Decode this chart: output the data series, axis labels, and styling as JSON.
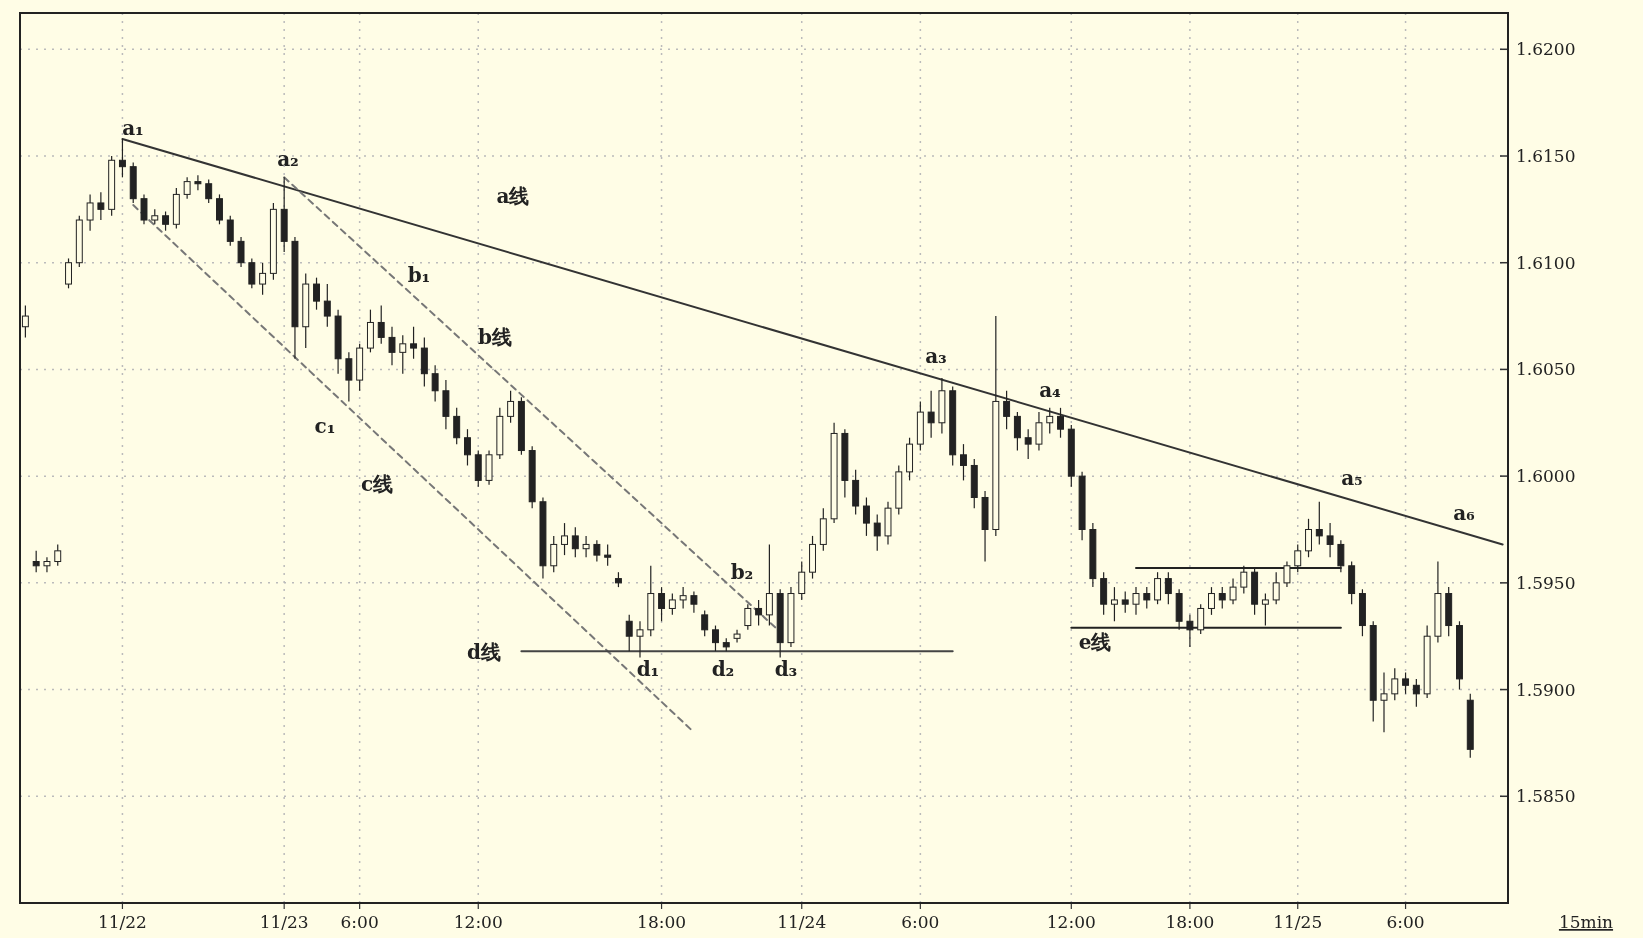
{
  "chart_data": {
    "type": "candlestick",
    "xlabel": "15min",
    "grid": true,
    "ylim": [
      1.58,
      1.6217
    ],
    "yticks": [
      {
        "value": 1.585,
        "label": "1.5850"
      },
      {
        "value": 1.59,
        "label": "1.5900"
      },
      {
        "value": 1.595,
        "label": "1.5950"
      },
      {
        "value": 1.6,
        "label": "1.6000"
      },
      {
        "value": 1.605,
        "label": "1.6050"
      },
      {
        "value": 1.61,
        "label": "1.6100"
      },
      {
        "value": 1.615,
        "label": "1.6150"
      },
      {
        "value": 1.62,
        "label": "1.6200"
      }
    ],
    "categories": [
      null,
      null,
      null,
      null,
      null,
      null,
      null,
      null,
      null,
      "11/22",
      null,
      null,
      null,
      null,
      null,
      null,
      null,
      null,
      null,
      null,
      null,
      null,
      null,
      null,
      "11/23",
      null,
      null,
      null,
      null,
      null,
      null,
      "6:00",
      null,
      null,
      null,
      null,
      null,
      null,
      null,
      null,
      null,
      null,
      "12:00",
      null,
      null,
      null,
      null,
      null,
      null,
      null,
      null,
      null,
      null,
      null,
      null,
      null,
      null,
      null,
      null,
      "18:00",
      null,
      null,
      null,
      null,
      null,
      null,
      null,
      null,
      null,
      null,
      null,
      null,
      "11/24",
      null,
      null,
      null,
      null,
      null,
      null,
      null,
      null,
      null,
      null,
      "6:00",
      null,
      null,
      null,
      null,
      null,
      null,
      null,
      null,
      null,
      null,
      null,
      null,
      null,
      "12:00",
      null,
      null,
      null,
      null,
      null,
      null,
      null,
      null,
      null,
      null,
      "18:00",
      null,
      null,
      null,
      null,
      null,
      null,
      null,
      null,
      null,
      "11/25",
      null,
      null,
      null,
      null,
      null,
      null,
      null,
      null,
      null,
      "6:00",
      null,
      null,
      null,
      null,
      null,
      null,
      null,
      null,
      null
    ],
    "ohlc": [
      [
        1.607,
        1.608,
        1.6065,
        1.6075
      ],
      [
        1.596,
        1.5965,
        1.5955,
        1.5958
      ],
      [
        1.5958,
        1.5962,
        1.5955,
        1.596
      ],
      [
        1.596,
        1.5968,
        1.5958,
        1.5965
      ],
      [
        1.609,
        1.6102,
        1.6088,
        1.61
      ],
      [
        1.61,
        1.6122,
        1.6098,
        1.612
      ],
      [
        1.612,
        1.6132,
        1.6115,
        1.6128
      ],
      [
        1.6128,
        1.6133,
        1.612,
        1.6125
      ],
      [
        1.6125,
        1.615,
        1.6122,
        1.6148
      ],
      [
        1.6148,
        1.6158,
        1.614,
        1.6145
      ],
      [
        1.6145,
        1.6147,
        1.6128,
        1.613
      ],
      [
        1.613,
        1.6132,
        1.6118,
        1.612
      ],
      [
        1.612,
        1.6125,
        1.6118,
        1.6122
      ],
      [
        1.6122,
        1.6124,
        1.6115,
        1.6118
      ],
      [
        1.6118,
        1.6135,
        1.6116,
        1.6132
      ],
      [
        1.6132,
        1.614,
        1.613,
        1.6138
      ],
      [
        1.6138,
        1.6141,
        1.6134,
        1.6137
      ],
      [
        1.6137,
        1.6139,
        1.6128,
        1.613
      ],
      [
        1.613,
        1.6132,
        1.6118,
        1.612
      ],
      [
        1.612,
        1.6122,
        1.6108,
        1.611
      ],
      [
        1.611,
        1.6112,
        1.6098,
        1.61
      ],
      [
        1.61,
        1.6102,
        1.6088,
        1.609
      ],
      [
        1.609,
        1.61,
        1.6085,
        1.6095
      ],
      [
        1.6095,
        1.6128,
        1.6092,
        1.6125
      ],
      [
        1.6125,
        1.614,
        1.6105,
        1.611
      ],
      [
        1.611,
        1.6112,
        1.6055,
        1.607
      ],
      [
        1.607,
        1.6095,
        1.606,
        1.609
      ],
      [
        1.609,
        1.6093,
        1.6078,
        1.6082
      ],
      [
        1.6082,
        1.609,
        1.607,
        1.6075
      ],
      [
        1.6075,
        1.6078,
        1.6048,
        1.6055
      ],
      [
        1.6055,
        1.6058,
        1.6035,
        1.6045
      ],
      [
        1.6045,
        1.6062,
        1.604,
        1.606
      ],
      [
        1.606,
        1.6078,
        1.6058,
        1.6072
      ],
      [
        1.6072,
        1.608,
        1.6062,
        1.6065
      ],
      [
        1.6065,
        1.607,
        1.6052,
        1.6058
      ],
      [
        1.6058,
        1.6066,
        1.6048,
        1.6062
      ],
      [
        1.6062,
        1.607,
        1.6055,
        1.606
      ],
      [
        1.606,
        1.6065,
        1.6042,
        1.6048
      ],
      [
        1.6048,
        1.6052,
        1.6035,
        1.604
      ],
      [
        1.604,
        1.6045,
        1.6022,
        1.6028
      ],
      [
        1.6028,
        1.6032,
        1.6015,
        1.6018
      ],
      [
        1.6018,
        1.6022,
        1.6005,
        1.601
      ],
      [
        1.601,
        1.6012,
        1.5995,
        1.5998
      ],
      [
        1.5998,
        1.6012,
        1.5996,
        1.601
      ],
      [
        1.601,
        1.6032,
        1.6008,
        1.6028
      ],
      [
        1.6028,
        1.604,
        1.6025,
        1.6035
      ],
      [
        1.6035,
        1.6037,
        1.601,
        1.6012
      ],
      [
        1.6012,
        1.6014,
        1.5985,
        1.5988
      ],
      [
        1.5988,
        1.599,
        1.5952,
        1.5958
      ],
      [
        1.5958,
        1.5972,
        1.5955,
        1.5968
      ],
      [
        1.5968,
        1.5978,
        1.5963,
        1.5972
      ],
      [
        1.5972,
        1.5976,
        1.5962,
        1.5966
      ],
      [
        1.5966,
        1.5972,
        1.5962,
        1.5968
      ],
      [
        1.5968,
        1.597,
        1.596,
        1.5963
      ],
      [
        1.5963,
        1.5968,
        1.5958,
        1.5962
      ],
      [
        1.5952,
        1.5955,
        1.5948,
        1.595
      ],
      [
        1.5932,
        1.5935,
        1.5918,
        1.5925
      ],
      [
        1.5925,
        1.5932,
        1.5915,
        1.5928
      ],
      [
        1.5928,
        1.5958,
        1.5925,
        1.5945
      ],
      [
        1.5945,
        1.5948,
        1.5932,
        1.5938
      ],
      [
        1.5938,
        1.5945,
        1.5935,
        1.5942
      ],
      [
        1.5942,
        1.5948,
        1.5938,
        1.5944
      ],
      [
        1.5944,
        1.5946,
        1.5936,
        1.594
      ],
      [
        1.5935,
        1.5937,
        1.5925,
        1.5928
      ],
      [
        1.5928,
        1.593,
        1.5918,
        1.5922
      ],
      [
        1.5922,
        1.5924,
        1.5918,
        1.592
      ],
      [
        1.5924,
        1.5928,
        1.5922,
        1.5926
      ],
      [
        1.593,
        1.594,
        1.5928,
        1.5938
      ],
      [
        1.5938,
        1.5942,
        1.593,
        1.5935
      ],
      [
        1.5935,
        1.5968,
        1.593,
        1.5945
      ],
      [
        1.5945,
        1.5947,
        1.5915,
        1.5922
      ],
      [
        1.5922,
        1.5948,
        1.592,
        1.5945
      ],
      [
        1.5945,
        1.596,
        1.5942,
        1.5955
      ],
      [
        1.5955,
        1.5972,
        1.5952,
        1.5968
      ],
      [
        1.5968,
        1.5985,
        1.5965,
        1.598
      ],
      [
        1.598,
        1.6025,
        1.5978,
        1.602
      ],
      [
        1.602,
        1.6022,
        1.599,
        1.5998
      ],
      [
        1.5998,
        1.6003,
        1.5982,
        1.5986
      ],
      [
        1.5986,
        1.599,
        1.5972,
        1.5978
      ],
      [
        1.5978,
        1.5982,
        1.5965,
        1.5972
      ],
      [
        1.5972,
        1.5988,
        1.5968,
        1.5985
      ],
      [
        1.5985,
        1.6005,
        1.5982,
        1.6002
      ],
      [
        1.6002,
        1.6018,
        1.5998,
        1.6015
      ],
      [
        1.6015,
        1.6035,
        1.6012,
        1.603
      ],
      [
        1.603,
        1.604,
        1.6018,
        1.6025
      ],
      [
        1.6025,
        1.6046,
        1.602,
        1.604
      ],
      [
        1.604,
        1.6042,
        1.6005,
        1.601
      ],
      [
        1.601,
        1.6015,
        1.5998,
        1.6005
      ],
      [
        1.6005,
        1.6008,
        1.5985,
        1.599
      ],
      [
        1.599,
        1.5993,
        1.596,
        1.5975
      ],
      [
        1.5975,
        1.6075,
        1.5972,
        1.6035
      ],
      [
        1.6035,
        1.604,
        1.6022,
        1.6028
      ],
      [
        1.6028,
        1.603,
        1.6012,
        1.6018
      ],
      [
        1.6018,
        1.6022,
        1.6008,
        1.6015
      ],
      [
        1.6015,
        1.603,
        1.6012,
        1.6025
      ],
      [
        1.6025,
        1.6032,
        1.602,
        1.6028
      ],
      [
        1.6028,
        1.6032,
        1.6018,
        1.6022
      ],
      [
        1.6022,
        1.6024,
        1.5995,
        1.6
      ],
      [
        1.6,
        1.6002,
        1.597,
        1.5975
      ],
      [
        1.5975,
        1.5978,
        1.5948,
        1.5952
      ],
      [
        1.5952,
        1.5955,
        1.5935,
        1.594
      ],
      [
        1.594,
        1.5948,
        1.5932,
        1.5942
      ],
      [
        1.5942,
        1.5946,
        1.5936,
        1.594
      ],
      [
        1.594,
        1.5948,
        1.5935,
        1.5945
      ],
      [
        1.5945,
        1.5948,
        1.5938,
        1.5942
      ],
      [
        1.5942,
        1.5955,
        1.594,
        1.5952
      ],
      [
        1.5952,
        1.5955,
        1.594,
        1.5945
      ],
      [
        1.5945,
        1.5947,
        1.5928,
        1.5932
      ],
      [
        1.5932,
        1.5935,
        1.592,
        1.5928
      ],
      [
        1.5928,
        1.594,
        1.5926,
        1.5938
      ],
      [
        1.5938,
        1.5948,
        1.5935,
        1.5945
      ],
      [
        1.5945,
        1.5948,
        1.5938,
        1.5942
      ],
      [
        1.5942,
        1.5952,
        1.594,
        1.5948
      ],
      [
        1.5948,
        1.5958,
        1.5945,
        1.5955
      ],
      [
        1.5955,
        1.5957,
        1.5935,
        1.594
      ],
      [
        1.594,
        1.5945,
        1.593,
        1.5942
      ],
      [
        1.5942,
        1.5955,
        1.594,
        1.595
      ],
      [
        1.595,
        1.596,
        1.5948,
        1.5958
      ],
      [
        1.5958,
        1.5968,
        1.5955,
        1.5965
      ],
      [
        1.5965,
        1.598,
        1.5962,
        1.5975
      ],
      [
        1.5975,
        1.5988,
        1.5968,
        1.5972
      ],
      [
        1.5972,
        1.5978,
        1.5962,
        1.5968
      ],
      [
        1.5968,
        1.597,
        1.5955,
        1.5958
      ],
      [
        1.5958,
        1.596,
        1.594,
        1.5945
      ],
      [
        1.5945,
        1.5947,
        1.5925,
        1.593
      ],
      [
        1.593,
        1.5932,
        1.5885,
        1.5895
      ],
      [
        1.5895,
        1.5908,
        1.588,
        1.5898
      ],
      [
        1.5898,
        1.591,
        1.5895,
        1.5905
      ],
      [
        1.5905,
        1.5908,
        1.5898,
        1.5902
      ],
      [
        1.5902,
        1.5905,
        1.5892,
        1.5898
      ],
      [
        1.5898,
        1.593,
        1.5896,
        1.5925
      ],
      [
        1.5925,
        1.596,
        1.5922,
        1.5945
      ],
      [
        1.5945,
        1.5948,
        1.5925,
        1.593
      ],
      [
        1.593,
        1.5932,
        1.59,
        1.5905
      ],
      [
        1.5895,
        1.5898,
        1.5868,
        1.5872
      ],
      null,
      null,
      null
    ],
    "series": [
      {
        "type": "line",
        "color": "#333333",
        "line_style": "solid",
        "values": [
          null,
          null,
          null,
          null,
          null,
          null,
          null,
          null,
          null,
          1.6158,
          null,
          null,
          null,
          null,
          null,
          null,
          null,
          null,
          null,
          null,
          null,
          null,
          null,
          null,
          null,
          null,
          null,
          null,
          null,
          null,
          null,
          null,
          null,
          null,
          null,
          null,
          null,
          null,
          null,
          null,
          null,
          null,
          null,
          null,
          null,
          null,
          null,
          null,
          null,
          null,
          null,
          null,
          null,
          null,
          null,
          null,
          null,
          null,
          null,
          null,
          null,
          null,
          null,
          null,
          null,
          null,
          null,
          null,
          null,
          null,
          null,
          null,
          null,
          null,
          null,
          null,
          null,
          null,
          null,
          null,
          null,
          null,
          null,
          null,
          null,
          null,
          null,
          null,
          null,
          null,
          null,
          null,
          null,
          null,
          null,
          null,
          null,
          null,
          null,
          null,
          null,
          null,
          null,
          null,
          null,
          null,
          null,
          null,
          null,
          null,
          null,
          null,
          null,
          null,
          null,
          null,
          null,
          null,
          null,
          null,
          null,
          null,
          null,
          null,
          null,
          null,
          null,
          null,
          null,
          null,
          null,
          null,
          null,
          null,
          null,
          null,
          null,
          1.5968
        ]
      },
      {
        "type": "line",
        "color": "#777777",
        "line_style": "dashed",
        "values": [
          null,
          null,
          null,
          null,
          null,
          null,
          null,
          null,
          null,
          null,
          null,
          null,
          null,
          null,
          null,
          null,
          null,
          null,
          null,
          null,
          null,
          null,
          null,
          null,
          1.614,
          null,
          null,
          null,
          null,
          null,
          null,
          null,
          null,
          null,
          null,
          null,
          null,
          null,
          null,
          null,
          null,
          null,
          null,
          null,
          null,
          null,
          null,
          null,
          null,
          null,
          null,
          null,
          null,
          null,
          null,
          null,
          null,
          null,
          null,
          null,
          null,
          null,
          null,
          null,
          null,
          null,
          null,
          null,
          null,
          null,
          1.5927,
          null,
          null,
          null,
          null,
          null,
          null,
          null,
          null,
          null,
          null,
          null,
          null,
          null,
          null,
          null,
          null,
          null,
          null,
          null,
          null,
          null,
          null,
          null,
          null,
          null,
          null,
          null,
          null,
          null,
          null,
          null,
          null,
          null,
          null,
          null,
          null,
          null,
          null,
          null,
          null,
          null,
          null,
          null,
          null,
          null,
          null,
          null,
          null,
          null,
          null,
          null,
          null,
          null,
          null,
          null,
          null,
          null,
          null,
          null,
          null,
          null,
          null,
          null,
          null,
          null,
          null,
          null
        ]
      },
      {
        "type": "line",
        "color": "#777777",
        "line_style": "dashed",
        "values": [
          null,
          null,
          null,
          null,
          null,
          null,
          null,
          null,
          null,
          null,
          1.6127,
          null,
          null,
          null,
          null,
          null,
          null,
          null,
          null,
          null,
          null,
          null,
          null,
          null,
          null,
          null,
          null,
          null,
          null,
          null,
          null,
          null,
          null,
          null,
          null,
          null,
          null,
          null,
          null,
          null,
          null,
          null,
          null,
          null,
          null,
          null,
          null,
          null,
          null,
          null,
          null,
          null,
          null,
          null,
          null,
          null,
          null,
          null,
          null,
          null,
          null,
          null,
          1.588,
          null,
          null,
          null,
          null,
          null,
          null,
          null,
          null,
          null,
          null,
          null,
          null,
          null,
          null,
          null,
          null,
          null,
          null,
          null,
          null,
          null,
          null,
          null,
          null,
          null,
          null,
          null,
          null,
          null,
          null,
          null,
          null,
          null,
          null,
          null,
          null,
          null,
          null,
          null,
          null,
          null,
          null,
          null,
          null,
          null,
          null,
          null,
          null,
          null,
          null,
          null,
          null,
          null,
          null,
          null,
          null,
          null,
          null,
          null,
          null,
          null,
          null,
          null,
          null,
          null,
          null,
          null,
          null,
          null,
          null,
          null,
          null,
          null,
          null,
          null
        ]
      },
      {
        "type": "line",
        "color": "#444444",
        "line_style": "solid",
        "values": [
          null,
          null,
          null,
          null,
          null,
          null,
          null,
          null,
          null,
          null,
          null,
          null,
          null,
          null,
          null,
          null,
          null,
          null,
          null,
          null,
          null,
          null,
          null,
          null,
          null,
          null,
          null,
          null,
          null,
          null,
          null,
          null,
          null,
          null,
          null,
          null,
          null,
          null,
          null,
          null,
          null,
          null,
          null,
          null,
          null,
          null,
          1.5918,
          null,
          null,
          null,
          null,
          null,
          null,
          null,
          null,
          null,
          null,
          null,
          null,
          null,
          null,
          null,
          null,
          null,
          null,
          null,
          null,
          null,
          null,
          null,
          null,
          null,
          null,
          null,
          null,
          null,
          null,
          null,
          null,
          null,
          null,
          null,
          null,
          null,
          null,
          null,
          1.5918,
          null,
          null,
          null,
          null,
          null,
          null,
          null,
          null,
          null,
          null,
          null,
          null,
          null,
          null,
          null,
          null,
          null,
          null,
          null,
          null,
          null,
          null,
          null,
          null,
          null,
          null,
          null,
          null,
          null,
          null,
          null,
          null,
          null,
          null,
          null,
          null,
          null,
          null,
          null,
          null,
          null,
          null,
          null,
          null,
          null,
          null,
          null,
          null,
          null,
          null,
          null
        ]
      },
      {
        "type": "line",
        "color": "#222222",
        "line_style": "solid",
        "values": [
          null,
          null,
          null,
          null,
          null,
          null,
          null,
          null,
          null,
          null,
          null,
          null,
          null,
          null,
          null,
          null,
          null,
          null,
          null,
          null,
          null,
          null,
          null,
          null,
          null,
          null,
          null,
          null,
          null,
          null,
          null,
          null,
          null,
          null,
          null,
          null,
          null,
          null,
          null,
          null,
          null,
          null,
          null,
          null,
          null,
          null,
          null,
          null,
          null,
          null,
          null,
          null,
          null,
          null,
          null,
          null,
          null,
          null,
          null,
          null,
          null,
          null,
          null,
          null,
          null,
          null,
          null,
          null,
          null,
          null,
          null,
          null,
          null,
          null,
          null,
          null,
          null,
          null,
          null,
          null,
          null,
          null,
          null,
          null,
          null,
          null,
          null,
          null,
          null,
          null,
          null,
          null,
          null,
          null,
          null,
          null,
          null,
          1.5929,
          null,
          null,
          null,
          null,
          null,
          null,
          null,
          null,
          null,
          null,
          null,
          null,
          null,
          null,
          null,
          null,
          null,
          null,
          null,
          null,
          null,
          null,
          null,
          null,
          1.5929,
          null,
          null,
          null,
          null,
          null,
          null,
          null,
          null,
          null,
          null,
          null,
          null,
          null,
          null,
          null
        ]
      },
      {
        "type": "line",
        "color": "#222222",
        "line_style": "solid",
        "values": [
          null,
          null,
          null,
          null,
          null,
          null,
          null,
          null,
          null,
          null,
          null,
          null,
          null,
          null,
          null,
          null,
          null,
          null,
          null,
          null,
          null,
          null,
          null,
          null,
          null,
          null,
          null,
          null,
          null,
          null,
          null,
          null,
          null,
          null,
          null,
          null,
          null,
          null,
          null,
          null,
          null,
          null,
          null,
          null,
          null,
          null,
          null,
          null,
          null,
          null,
          null,
          null,
          null,
          null,
          null,
          null,
          null,
          null,
          null,
          null,
          null,
          null,
          null,
          null,
          null,
          null,
          null,
          null,
          null,
          null,
          null,
          null,
          null,
          null,
          null,
          null,
          null,
          null,
          null,
          null,
          null,
          null,
          null,
          null,
          null,
          null,
          null,
          null,
          null,
          null,
          null,
          null,
          null,
          null,
          null,
          null,
          null,
          null,
          null,
          null,
          null,
          null,
          null,
          1.5957,
          null,
          null,
          null,
          null,
          null,
          null,
          null,
          null,
          null,
          null,
          null,
          null,
          null,
          null,
          null,
          null,
          null,
          null,
          1.5957,
          null,
          null,
          null,
          null,
          null,
          null,
          null,
          null,
          null,
          null,
          null,
          null,
          null,
          null,
          null
        ]
      }
    ],
    "annotations": [
      "a₁",
      "a₂",
      "a₃",
      "a₄",
      "a₅",
      "a₆",
      "b₁",
      "b₂",
      "c₁",
      "d₁",
      "d₂",
      "d₃",
      "a线",
      "b线",
      "c线",
      "d线",
      "e线"
    ]
  }
}
